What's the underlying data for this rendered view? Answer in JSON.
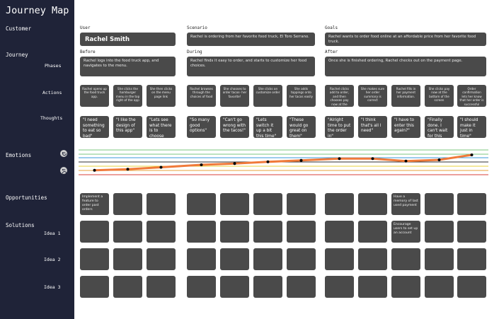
{
  "sidebar": {
    "title": "Journey Map",
    "customer": "Customer",
    "journey": "Journey",
    "phases": "Phases",
    "actions": "Actions",
    "thoughts": "Thoughts",
    "emotions": "Emotions",
    "opportunities": "Opportunities",
    "solutions": "Solutions",
    "idea1": "Idea 1",
    "idea2": "Idea 2",
    "idea3": "Idea 3"
  },
  "header": {
    "user_label": "User",
    "user_name": "Rachel Smith",
    "scenario_label": "Scenario",
    "scenario_text": "Rachel is ordering from her favorite food truck, El Toro Serrano.",
    "goals_label": "Goals",
    "goals_text": "Rachel wants to order food online at an affordable price from her favorite food truck."
  },
  "phases": [
    {
      "label": "Before",
      "text": "Rachel logs into the food truck app, and navigates to the menu."
    },
    {
      "label": "During",
      "text": "Rachel finds it easy to order, and starts to customize her food choices."
    },
    {
      "label": "After",
      "text": "Once she is finished ordering, Rachel checks out on the payment page."
    }
  ],
  "actions": [
    "Rachel opens up the food truck app.",
    "She clicks the hamburger menu in the top right of the app",
    "She then clicks on the menu page link",
    "Rachel browses through the choices of food",
    "She chooses to order tacos- her favorite!",
    "She clicks on customize order",
    "She adds toppings onto her tacos easily",
    "Rachel clicks add to order, and then chooses pay now at the bottom",
    "She makes sure her order summary is correct",
    "Rachel fills in her payment information.",
    "She clicks pay now at the bottom of the screen",
    "Order confirmation lets her know that her order is successful"
  ],
  "thoughts": [
    "\"I need something to eat so bad\"",
    "\"I like the design of this app\"",
    "\"Lets see what there is to choose from\"",
    "\"So many good options\"",
    "\"Can't go wrong with the tacos!\"",
    "\"Lets switch it up a bit this time\"",
    "\"These would go great on them\"",
    "\"Alright time to put the order in\"",
    "\"I think that's all I need\"",
    "\"I have to enter this again?\"",
    "\"Finally done. I can't wait for this food\"",
    "\"I should make it just in time\""
  ],
  "emotions": {
    "happy_icon": "smiley-face-icon",
    "sad_icon": "frowning-face-icon",
    "line_color": "#f07a3a",
    "point_color": "#000000",
    "levels": [
      0.18,
      0.22,
      0.3,
      0.4,
      0.45,
      0.52,
      0.58,
      0.65,
      0.65,
      0.55,
      0.6,
      0.8
    ]
  },
  "opportunities": [
    "Implement a feature to order past orders",
    "",
    "",
    "",
    "",
    "",
    "",
    "",
    "",
    "Have a memory of last used payment",
    "",
    ""
  ],
  "ideas": [
    [
      "",
      "",
      "",
      "",
      "",
      "",
      "",
      "",
      "",
      "Encourage users to set up an account",
      "",
      ""
    ],
    [
      "",
      "",
      "",
      "",
      "",
      "",
      "",
      "",
      "",
      "",
      "",
      ""
    ],
    [
      "",
      "",
      "",
      "",
      "",
      "",
      "",
      "",
      "",
      "",
      "",
      ""
    ]
  ]
}
